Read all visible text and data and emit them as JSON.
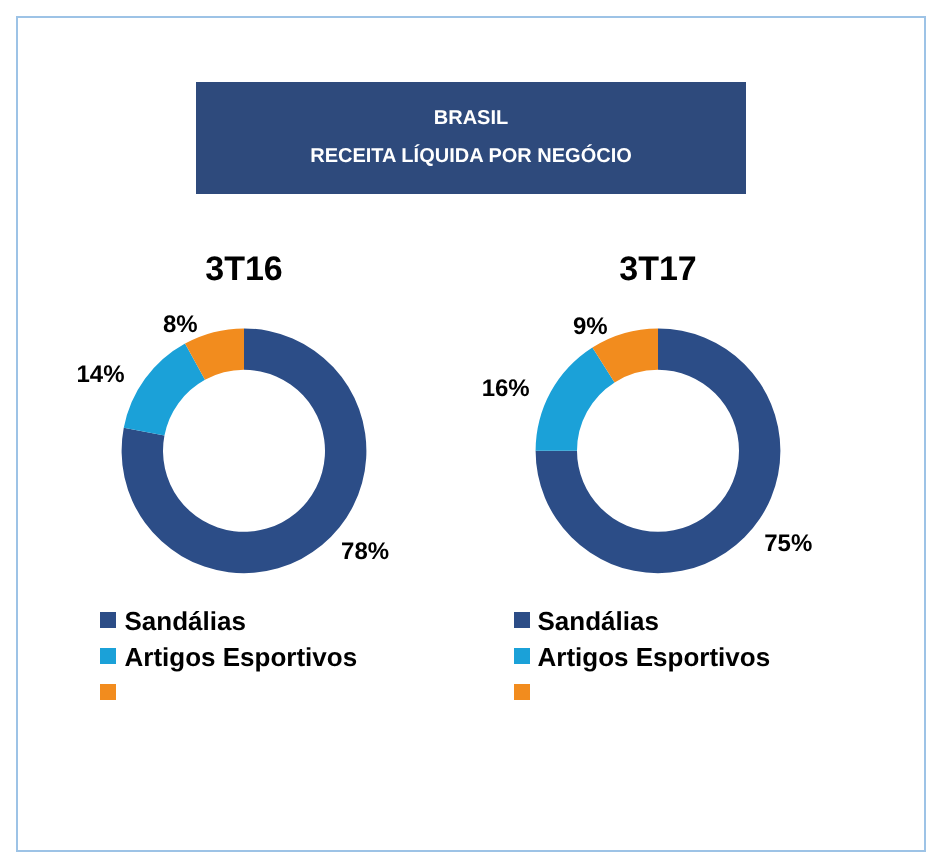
{
  "chart_data": [
    {
      "type": "other",
      "title": "BRASIL",
      "subtitle": "RECEITA LÍQUIDA POR NEGÓCIO",
      "color": "#2e4a7c"
    },
    {
      "type": "donut",
      "title": "3T16",
      "categories": [
        "Sandálias",
        "Artigos Esportivos",
        null
      ],
      "values": [
        78,
        14,
        8
      ],
      "value_labels": [
        "78%",
        "14%",
        "8%"
      ],
      "colors": [
        "#2c4d87",
        "#1ba1d8",
        "#f28c1e"
      ],
      "legend": "bottom"
    },
    {
      "type": "donut",
      "title": "3T17",
      "categories": [
        "Sandálias",
        "Artigos Esportivos",
        null
      ],
      "values": [
        75,
        16,
        9
      ],
      "value_labels": [
        "75%",
        "16%",
        "9%"
      ],
      "colors": [
        "#2c4d87",
        "#1ba1d8",
        "#f28c1e"
      ],
      "legend": "bottom"
    }
  ]
}
